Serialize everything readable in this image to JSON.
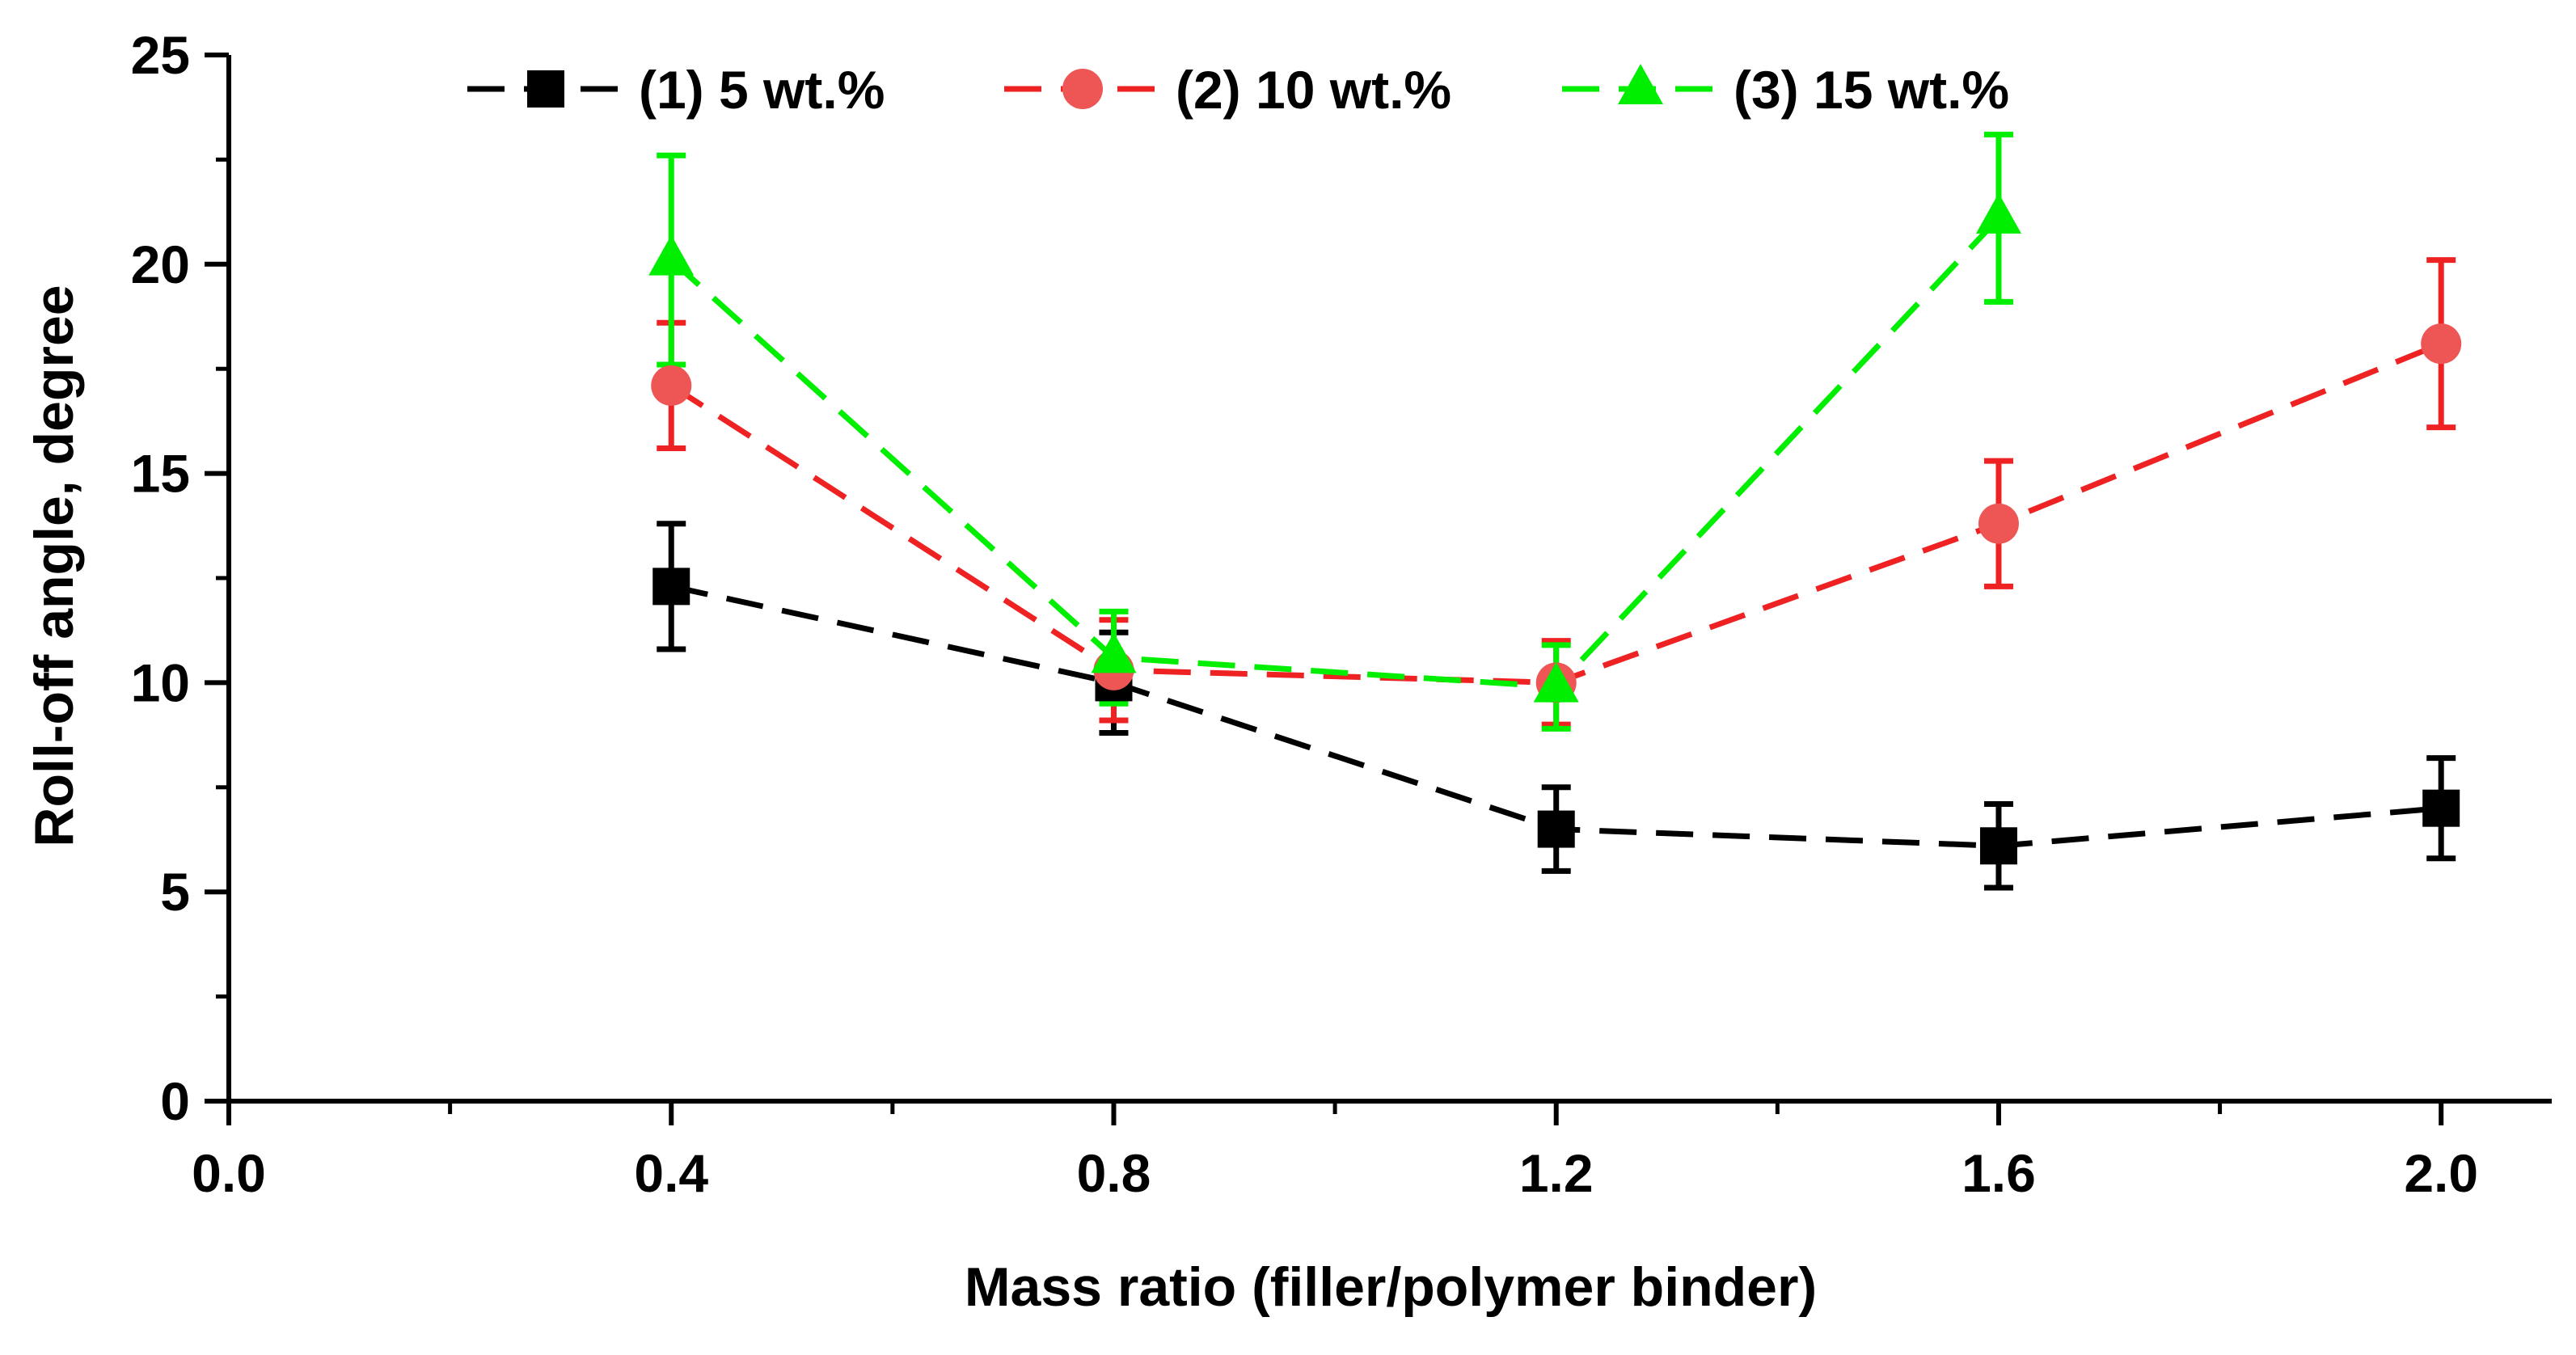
{
  "chart_data": {
    "type": "line",
    "title": "",
    "xlabel": "Mass ratio (filler/polymer binder)",
    "ylabel": "Roll-off angle, degree",
    "xlim": [
      0.0,
      2.1
    ],
    "ylim": [
      0,
      25
    ],
    "x_ticks": [
      0.0,
      0.4,
      0.8,
      1.2,
      1.6,
      2.0
    ],
    "x_tick_labels": [
      "0.0",
      "0.4",
      "0.8",
      "1.2",
      "1.6",
      "2.0"
    ],
    "y_ticks": [
      0,
      5,
      10,
      15,
      20,
      25
    ],
    "y_tick_labels": [
      "0",
      "5",
      "10",
      "15",
      "20",
      "25"
    ],
    "grid": false,
    "legend_position": "top",
    "series": [
      {
        "name": "(1)  5 wt.%",
        "marker": "square",
        "color": "#000000",
        "x": [
          0.4,
          0.8,
          1.2,
          1.6,
          2.0
        ],
        "y": [
          12.3,
          10.0,
          6.5,
          6.1,
          7.0
        ],
        "error": [
          1.5,
          1.2,
          1.0,
          1.0,
          1.2
        ]
      },
      {
        "name": "(2)  10 wt.%",
        "marker": "circle",
        "color": "#ee2222",
        "x": [
          0.4,
          0.8,
          1.2,
          1.6,
          2.0
        ],
        "y": [
          17.1,
          10.3,
          10.0,
          13.8,
          18.1
        ],
        "error": [
          1.5,
          1.2,
          1.0,
          1.5,
          2.0
        ]
      },
      {
        "name": "(3)  15 wt.%",
        "marker": "triangle",
        "color": "#00ee00",
        "x": [
          0.4,
          0.8,
          1.2,
          1.6
        ],
        "y": [
          20.1,
          10.6,
          9.9,
          21.1
        ],
        "error": [
          2.5,
          1.1,
          1.0,
          2.0
        ]
      }
    ]
  }
}
